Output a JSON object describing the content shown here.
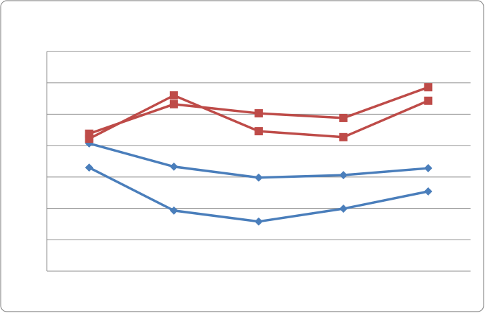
{
  "chart_data": {
    "type": "line",
    "categories": [
      null,
      null,
      null,
      null,
      null
    ],
    "series": [
      {
        "color": "#4a7ebb",
        "marker": "diamond",
        "values": [
          4.07,
          3.33,
          2.98,
          3.06,
          3.28
        ]
      },
      {
        "color": "#4a7ebb",
        "marker": "diamond",
        "values": [
          3.3,
          1.93,
          1.58,
          1.99,
          2.54
        ]
      },
      {
        "color": "#be4b48",
        "marker": "square",
        "values": [
          4.22,
          5.6,
          4.46,
          4.27,
          5.43
        ]
      },
      {
        "color": "#be4b48",
        "marker": "square",
        "values": [
          4.38,
          5.32,
          5.03,
          4.88,
          5.86
        ]
      }
    ],
    "ylim": [
      0,
      7
    ],
    "yticks": [
      0,
      1,
      2,
      3,
      4,
      5,
      6,
      7
    ],
    "grid": true
  }
}
